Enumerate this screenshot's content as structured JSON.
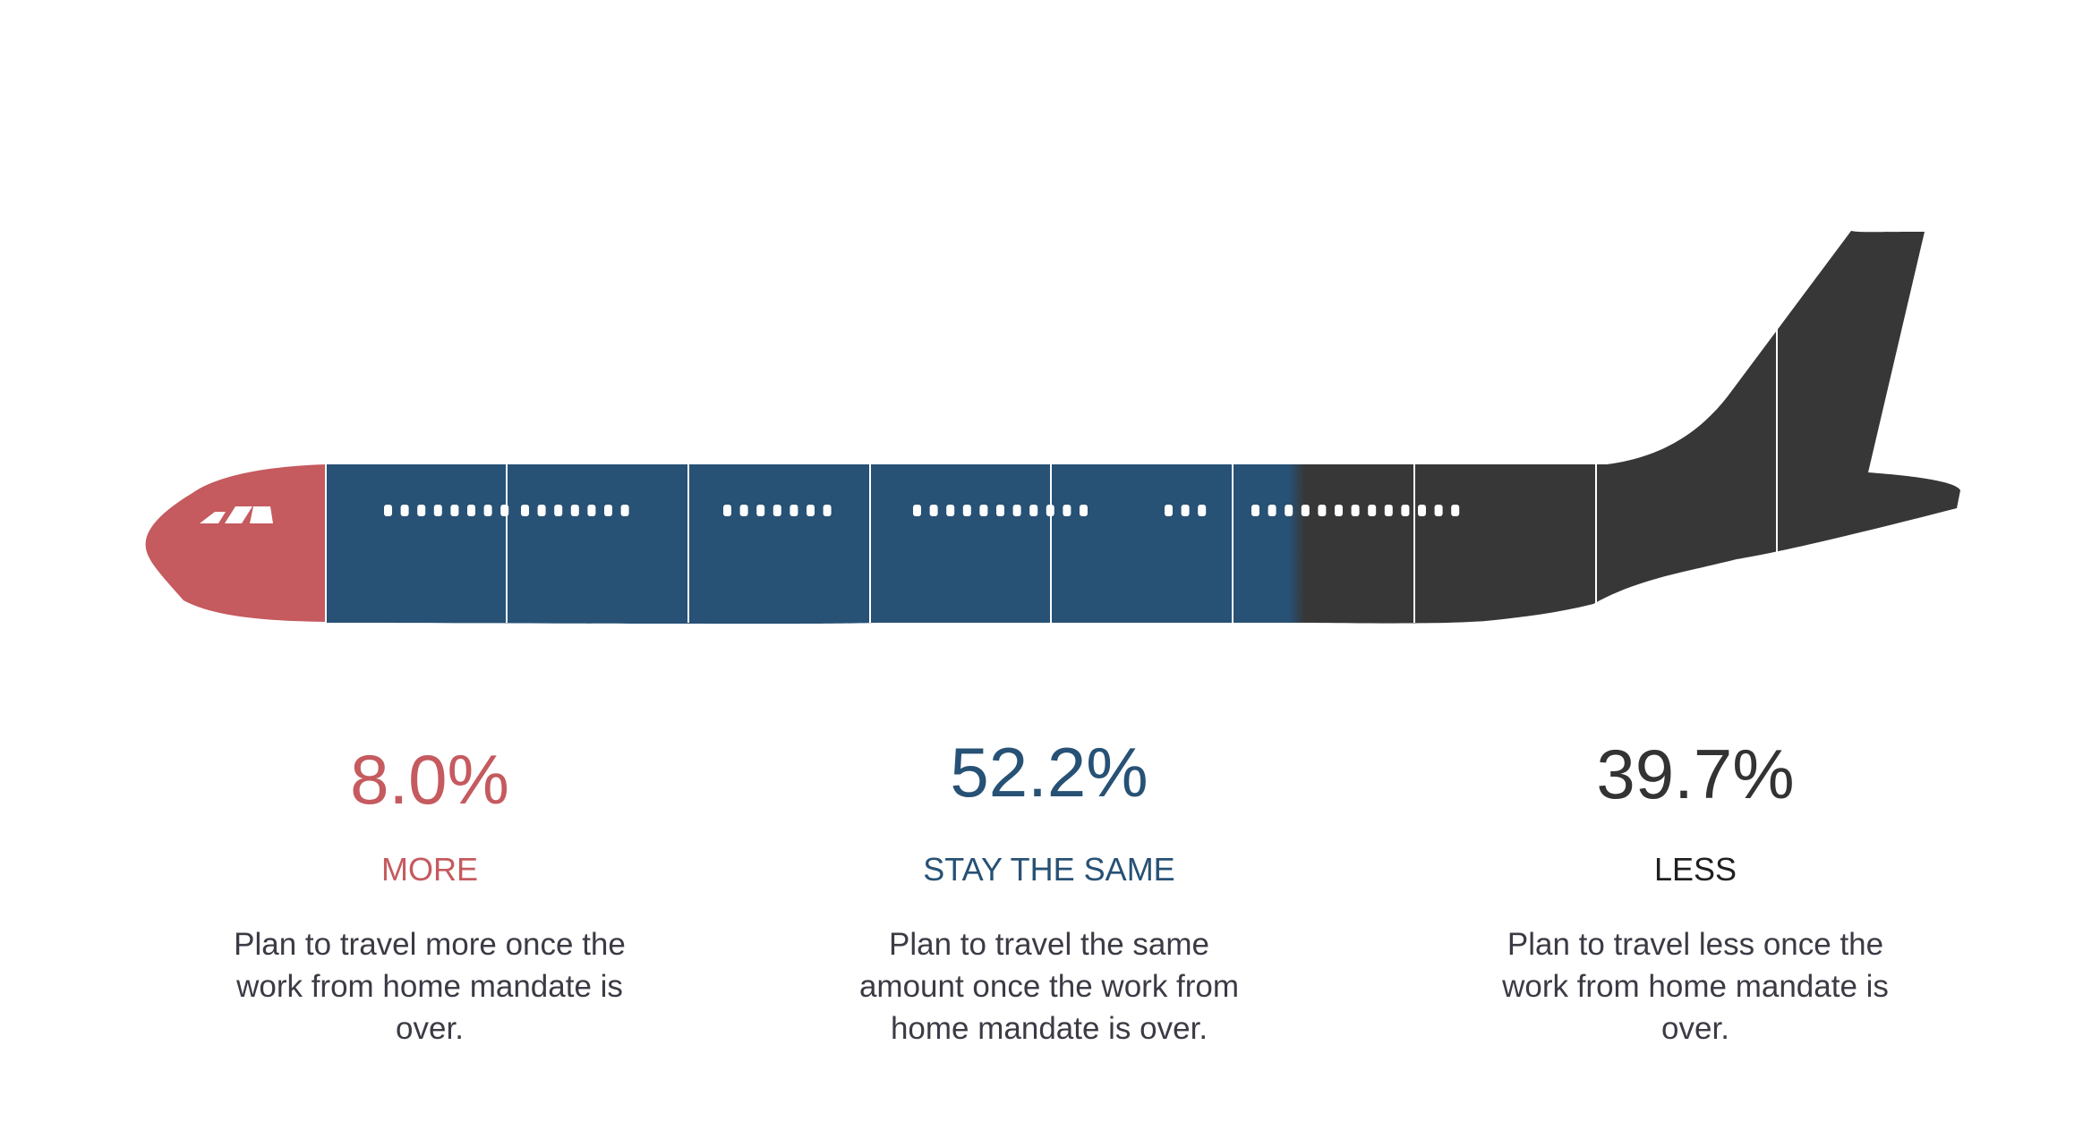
{
  "chart_data": {
    "type": "bar",
    "categories": [
      "MORE",
      "STAY THE SAME",
      "LESS"
    ],
    "values": [
      8.0,
      52.2,
      39.7
    ],
    "value_labels": [
      "8.0%",
      "52.2%",
      "39.7%"
    ],
    "descriptions": [
      "Plan to travel more once the work from home mandate is over.",
      "Plan to travel the same amount once the work from home mandate is over.",
      "Plan to travel less once the work from home mandate is over."
    ],
    "colors": [
      "#c55a5f",
      "#275175",
      "#373737"
    ],
    "unit": "%"
  },
  "stats": [
    {
      "pct": "8.0%",
      "label": "MORE",
      "desc": "Plan to travel more once the work from home mandate is over."
    },
    {
      "pct": "52.2%",
      "label": "STAY THE SAME",
      "desc": "Plan to travel the same amount once the work from home mandate is over."
    },
    {
      "pct": "39.7%",
      "label": "LESS",
      "desc": "Plan to travel less once the work from home mandate is over."
    }
  ]
}
